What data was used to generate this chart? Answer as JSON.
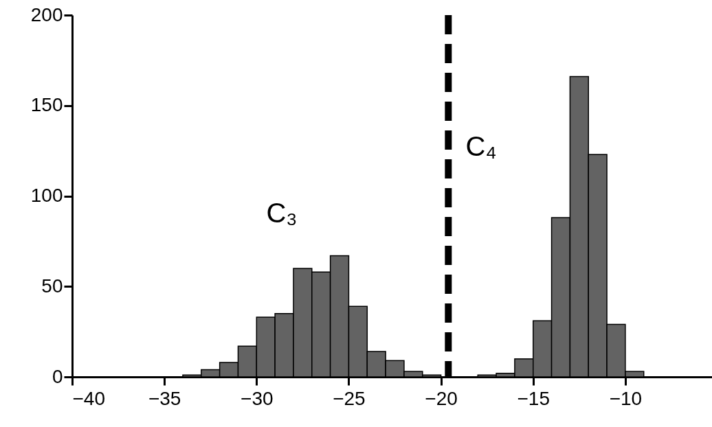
{
  "chart_data": {
    "type": "histogram",
    "bins": [
      -34,
      -33,
      -32,
      -31,
      -30,
      -29,
      -28,
      -27,
      -26,
      -25,
      -24,
      -23,
      -22,
      -21,
      -20,
      -19,
      -18,
      -17,
      -16,
      -15,
      -14,
      -13,
      -12,
      -11,
      -10,
      -9
    ],
    "values": [
      1,
      4,
      8,
      17,
      33,
      35,
      60,
      58,
      67,
      39,
      14,
      9,
      3,
      1,
      0,
      0,
      1,
      2,
      10,
      31,
      88,
      166,
      123,
      29,
      3
    ],
    "color": "#636363",
    "xlim": [
      -40,
      -5.3
    ],
    "xticks": [
      -40,
      -35,
      -30,
      -25,
      -20,
      -15,
      -10
    ],
    "ylim": [
      0,
      200
    ],
    "yticks": [
      0,
      50,
      100,
      150,
      200
    ],
    "ref_lines": [
      {
        "axis": "x",
        "value": -19.6,
        "line_style": "dashed",
        "color": "#000000"
      }
    ],
    "annotations": [
      "C₃",
      "C₄"
    ],
    "grid": false
  }
}
